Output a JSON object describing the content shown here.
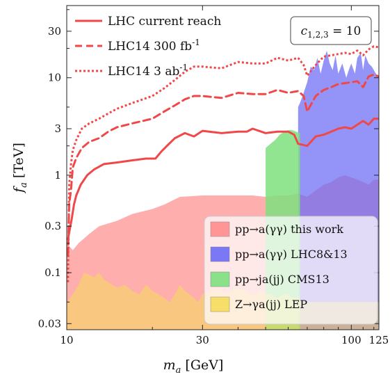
{
  "chart_data": {
    "type": "area",
    "xlabel_var": "m",
    "xlabel_sub": "a",
    "xlabel_unit": "[GeV]",
    "ylabel_var": "f",
    "ylabel_sub": "a",
    "ylabel_unit": "[TeV]",
    "x_scale": "log",
    "y_scale": "log",
    "xlim": [
      10,
      125
    ],
    "ylim": [
      0.026,
      55
    ],
    "x_ticks": [
      {
        "value": 10,
        "label": "10"
      },
      {
        "value": 30,
        "label": "30"
      },
      {
        "value": 100,
        "label": "100"
      },
      {
        "value": 125,
        "label": "125"
      }
    ],
    "y_ticks": [
      {
        "value": 0.03,
        "label": "0.03"
      },
      {
        "value": 0.1,
        "label": "0.1"
      },
      {
        "value": 0.3,
        "label": "0.3"
      },
      {
        "value": 1,
        "label": "1"
      },
      {
        "value": 3,
        "label": "3"
      },
      {
        "value": 10,
        "label": "10"
      },
      {
        "value": 30,
        "label": "30"
      }
    ],
    "coupling_box": {
      "symbol": "c",
      "sub": "1,2,3",
      "rest": " = 10"
    },
    "lines": [
      {
        "name": "LHC current reach",
        "style": "solid",
        "color": "#f04848",
        "x": [
          10.1,
          10.25,
          10.4,
          10.6,
          10.8,
          11.2,
          11.8,
          12.5,
          13.5,
          15,
          17,
          19,
          20.5,
          21.5,
          22.5,
          24,
          26,
          28,
          30,
          35,
          40,
          43,
          45,
          50,
          55,
          60,
          63,
          65,
          70,
          75,
          80,
          85,
          90,
          95,
          100,
          105,
          110,
          115,
          120,
          125
        ],
        "y": [
          0.22,
          0.28,
          0.35,
          0.5,
          0.62,
          0.8,
          1.0,
          1.15,
          1.3,
          1.35,
          1.42,
          1.48,
          1.48,
          1.75,
          2.0,
          2.4,
          2.7,
          2.5,
          2.85,
          2.7,
          2.8,
          2.8,
          3.0,
          2.7,
          2.8,
          2.8,
          2.6,
          2.1,
          2.0,
          2.5,
          2.6,
          2.8,
          3.0,
          3.1,
          3.0,
          3.3,
          3.6,
          3.3,
          3.8,
          3.8
        ]
      },
      {
        "name": "LHC14 300 fb",
        "name_sup": "-1",
        "style": "dashed",
        "color": "#f04848",
        "x": [
          10.1,
          10.2,
          10.35,
          10.5,
          10.8,
          11.3,
          12,
          13,
          14,
          15,
          17,
          20,
          22,
          24,
          26,
          28,
          30,
          35,
          40,
          45,
          50,
          55,
          60,
          65,
          68,
          70,
          75,
          80,
          85,
          90,
          95,
          100,
          105,
          110,
          115,
          120,
          125
        ],
        "y": [
          0.15,
          0.5,
          0.7,
          1.2,
          1.5,
          1.9,
          2.2,
          2.4,
          2.8,
          3.1,
          3.4,
          3.8,
          4.5,
          5.2,
          6.0,
          6.5,
          6.5,
          6.2,
          7.0,
          6.8,
          6.8,
          7.5,
          7.0,
          7.3,
          6.5,
          4.5,
          6.5,
          7.5,
          8.0,
          8.6,
          8.8,
          9.0,
          9.2,
          8.0,
          10.3,
          10.8,
          10.3
        ]
      },
      {
        "name": "LHC14 3 ab",
        "name_sup": "-1",
        "style": "dotted",
        "color": "#f04848",
        "x": [
          10.1,
          10.2,
          10.35,
          10.5,
          10.8,
          11.3,
          12,
          13,
          14,
          15,
          17,
          20,
          22,
          24,
          26,
          28,
          30,
          35,
          40,
          45,
          50,
          55,
          60,
          65,
          68,
          70,
          75,
          80,
          85,
          90,
          95,
          100,
          105,
          110,
          115,
          120,
          125
        ],
        "y": [
          0.08,
          0.8,
          1.3,
          1.8,
          2.3,
          3.0,
          3.4,
          3.8,
          4.3,
          4.8,
          5.5,
          6.5,
          7.8,
          9.5,
          11.5,
          13.0,
          13.0,
          12.5,
          14.5,
          14.0,
          14.0,
          16.0,
          15.0,
          16.0,
          13.5,
          10.5,
          13.5,
          16.5,
          17.0,
          17.5,
          18.0,
          17.5,
          19.0,
          17.0,
          19.5,
          21.0,
          20.5
        ]
      }
    ],
    "bands": [
      {
        "name": "pp→a(γγ) this work",
        "color": "#ff8c8c",
        "opacity": 0.7,
        "x": [
          10,
          10.5,
          11,
          12,
          13,
          15,
          17,
          20,
          22,
          25,
          30,
          35,
          40,
          45,
          50,
          55,
          60,
          65,
          70,
          75,
          80,
          85,
          90,
          95,
          100,
          105,
          110,
          115,
          120,
          125
        ],
        "lower": [
          0.026,
          0.026,
          0.026,
          0.026,
          0.026,
          0.026,
          0.026,
          0.026,
          0.026,
          0.026,
          0.026,
          0.026,
          0.026,
          0.026,
          0.026,
          0.026,
          0.026,
          0.026,
          0.026,
          0.026,
          0.026,
          0.026,
          0.026,
          0.026,
          0.026,
          0.026,
          0.026,
          0.026,
          0.026,
          0.026
        ],
        "upper": [
          0.2,
          0.17,
          0.2,
          0.25,
          0.3,
          0.34,
          0.4,
          0.45,
          0.5,
          0.6,
          0.62,
          0.62,
          0.62,
          0.62,
          0.6,
          0.62,
          0.62,
          0.65,
          0.6,
          0.7,
          0.8,
          0.85,
          0.95,
          1.0,
          0.95,
          0.9,
          0.85,
          0.8,
          0.9,
          0.9
        ]
      },
      {
        "name": "pp→a(γγ) LHC8&13",
        "color": "#6b6bf5",
        "opacity": 0.72,
        "x": [
          65,
          66,
          68,
          70,
          72,
          74,
          76,
          78,
          80,
          82,
          84,
          86,
          88,
          90,
          93,
          96,
          98,
          100,
          103,
          105,
          108,
          110,
          112,
          115,
          118,
          120,
          122,
          125
        ],
        "lower": [
          0.026,
          0.026,
          0.026,
          0.026,
          0.026,
          0.026,
          0.026,
          0.026,
          0.026,
          0.026,
          0.026,
          0.026,
          0.026,
          0.026,
          0.026,
          0.026,
          0.026,
          0.026,
          0.026,
          0.026,
          0.026,
          0.026,
          0.026,
          0.026,
          0.026,
          0.026,
          0.026,
          0.026
        ],
        "upper": [
          5,
          5.5,
          7,
          9,
          13,
          12,
          16,
          11,
          15,
          19,
          14,
          12,
          17,
          11,
          14,
          10,
          12,
          14,
          11,
          16,
          18,
          12,
          17,
          14,
          13,
          12,
          11,
          10
        ]
      },
      {
        "name": "pp→ja(jj) CMS13",
        "color": "#7ee07e",
        "opacity": 0.85,
        "x": [
          50,
          51,
          52,
          54,
          56,
          58,
          60,
          62,
          64,
          66
        ],
        "lower": [
          0.026,
          0.026,
          0.026,
          0.026,
          0.026,
          0.026,
          0.026,
          0.026,
          0.026,
          0.026
        ],
        "upper": [
          1.9,
          2.0,
          2.1,
          2.3,
          2.6,
          2.8,
          2.9,
          2.9,
          2.8,
          2.7
        ]
      },
      {
        "name": "Z→γa(jj) LEP",
        "color": "#f6dc5c",
        "opacity": 0.55,
        "x": [
          10,
          10.5,
          11,
          11.5,
          12,
          12.5,
          13,
          13.5,
          14,
          15,
          16,
          17,
          18,
          19,
          20,
          21,
          22,
          23,
          24,
          25,
          26,
          27,
          28,
          29,
          30,
          32,
          34,
          36,
          38,
          40,
          42,
          44,
          46,
          48,
          50,
          52,
          55,
          58,
          60,
          62,
          65,
          68,
          70,
          75,
          80,
          85,
          90,
          95,
          100,
          110,
          125
        ],
        "lower": [
          0.026,
          0.026,
          0.026,
          0.026,
          0.026,
          0.026,
          0.026,
          0.026,
          0.026,
          0.026,
          0.026,
          0.026,
          0.026,
          0.026,
          0.026,
          0.026,
          0.026,
          0.026,
          0.026,
          0.026,
          0.026,
          0.026,
          0.026,
          0.026,
          0.026,
          0.026,
          0.026,
          0.026,
          0.026,
          0.026,
          0.026,
          0.026,
          0.026,
          0.026,
          0.026,
          0.026,
          0.026,
          0.026,
          0.026,
          0.026,
          0.026,
          0.026,
          0.026,
          0.026,
          0.026,
          0.026,
          0.026,
          0.026,
          0.026,
          0.026,
          0.026
        ],
        "upper": [
          0.05,
          0.06,
          0.075,
          0.1,
          0.095,
          0.09,
          0.1,
          0.085,
          0.08,
          0.07,
          0.075,
          0.065,
          0.06,
          0.075,
          0.065,
          0.06,
          0.055,
          0.05,
          0.06,
          0.075,
          0.065,
          0.06,
          0.055,
          0.05,
          0.06,
          0.065,
          0.07,
          0.06,
          0.065,
          0.07,
          0.065,
          0.06,
          0.06,
          0.065,
          0.06,
          0.06,
          0.055,
          0.06,
          0.06,
          0.055,
          0.055,
          0.05,
          0.05,
          0.05,
          0.05,
          0.05,
          0.05,
          0.05,
          0.05,
          0.05,
          0.05
        ]
      }
    ],
    "legend_top": {
      "placement": "top-left",
      "frame": false
    },
    "legend_bottom": {
      "placement": "bottom-right",
      "frame": true
    }
  }
}
